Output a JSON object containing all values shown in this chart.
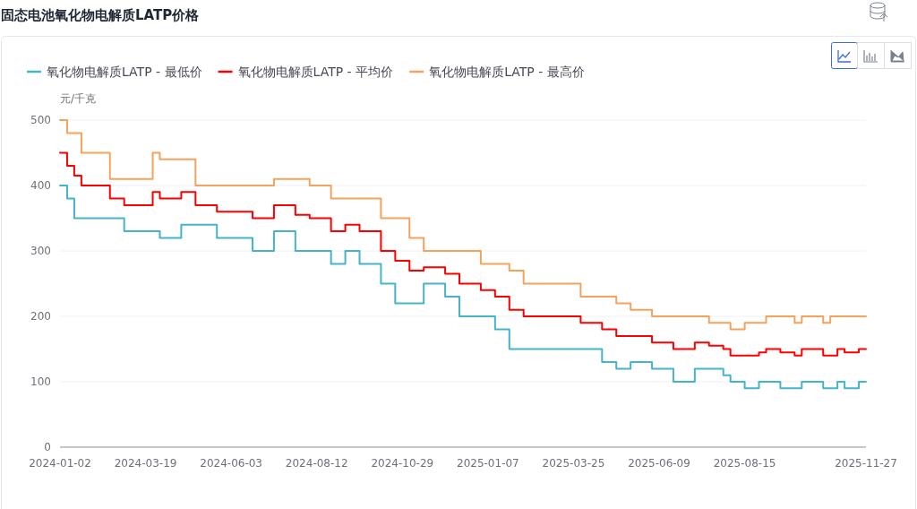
{
  "chart_data": {
    "type": "step",
    "title": "固态电池氧化物电解质LATP价格",
    "ylabel": "元/千克",
    "categories": [
      "2024-01-02",
      null,
      null,
      null,
      null,
      null,
      null,
      null,
      null,
      null,
      null,
      null,
      "2024-03-19",
      null,
      null,
      null,
      null,
      null,
      null,
      null,
      null,
      null,
      null,
      null,
      "2024-06-03",
      null,
      null,
      null,
      null,
      null,
      null,
      null,
      null,
      null,
      null,
      null,
      "2024-08-12",
      null,
      null,
      null,
      null,
      null,
      null,
      null,
      null,
      null,
      null,
      null,
      "2024-10-29",
      null,
      null,
      null,
      null,
      null,
      null,
      null,
      null,
      null,
      null,
      null,
      "2025-01-07",
      null,
      null,
      null,
      null,
      null,
      null,
      null,
      null,
      null,
      null,
      null,
      "2025-03-25",
      null,
      null,
      null,
      null,
      null,
      null,
      null,
      null,
      null,
      null,
      null,
      "2025-06-09",
      null,
      null,
      null,
      null,
      null,
      null,
      null,
      null,
      null,
      null,
      null,
      "2025-08-15",
      null,
      null,
      null,
      null,
      null,
      null,
      null,
      null,
      null,
      null,
      null,
      null,
      null,
      null,
      null,
      null,
      "2025-11-27"
    ],
    "series": [
      {
        "name": "氧化物电解质LATP - 最低价",
        "color": "#45b4c9",
        "values": [
          400,
          380,
          350,
          350,
          350,
          350,
          350,
          350,
          350,
          330,
          330,
          330,
          330,
          330,
          320,
          320,
          320,
          340,
          340,
          340,
          340,
          340,
          320,
          320,
          320,
          320,
          320,
          300,
          300,
          300,
          330,
          330,
          330,
          300,
          300,
          300,
          300,
          300,
          280,
          280,
          300,
          300,
          280,
          280,
          280,
          250,
          250,
          220,
          220,
          220,
          220,
          250,
          250,
          250,
          230,
          230,
          200,
          200,
          200,
          200,
          200,
          180,
          180,
          150,
          150,
          150,
          150,
          150,
          150,
          150,
          150,
          150,
          150,
          150,
          150,
          150,
          130,
          130,
          120,
          120,
          130,
          130,
          130,
          120,
          120,
          120,
          100,
          100,
          100,
          120,
          120,
          120,
          120,
          110,
          100,
          100,
          90,
          90,
          100,
          100,
          100,
          90,
          90,
          90,
          100,
          100,
          100,
          90,
          90,
          100,
          90,
          90,
          100,
          100
        ]
      },
      {
        "name": "氧化物电解质LATP - 平均价",
        "color": "#ff0000",
        "values": [
          450,
          430,
          415,
          400,
          400,
          400,
          400,
          380,
          380,
          370,
          370,
          370,
          370,
          390,
          380,
          380,
          380,
          390,
          390,
          370,
          370,
          370,
          360,
          360,
          360,
          360,
          360,
          350,
          350,
          350,
          370,
          370,
          370,
          355,
          355,
          350,
          350,
          350,
          330,
          330,
          340,
          340,
          330,
          330,
          330,
          300,
          300,
          285,
          285,
          270,
          270,
          275,
          275,
          275,
          265,
          265,
          250,
          250,
          250,
          240,
          240,
          230,
          230,
          210,
          210,
          200,
          200,
          200,
          200,
          200,
          200,
          200,
          200,
          190,
          190,
          190,
          180,
          180,
          170,
          170,
          170,
          170,
          170,
          160,
          160,
          160,
          150,
          150,
          150,
          160,
          160,
          155,
          155,
          150,
          140,
          140,
          140,
          140,
          145,
          150,
          150,
          145,
          145,
          140,
          150,
          150,
          150,
          140,
          140,
          150,
          145,
          145,
          150,
          150
        ]
      },
      {
        "name": "氧化物电解质LATP - 最高价",
        "color": "#f5a25d",
        "values": [
          500,
          480,
          480,
          450,
          450,
          450,
          450,
          410,
          410,
          410,
          410,
          410,
          410,
          450,
          440,
          440,
          440,
          440,
          440,
          400,
          400,
          400,
          400,
          400,
          400,
          400,
          400,
          400,
          400,
          400,
          410,
          410,
          410,
          410,
          410,
          400,
          400,
          400,
          380,
          380,
          380,
          380,
          380,
          380,
          380,
          350,
          350,
          350,
          350,
          320,
          320,
          300,
          300,
          300,
          300,
          300,
          300,
          300,
          300,
          280,
          280,
          280,
          280,
          270,
          270,
          250,
          250,
          250,
          250,
          250,
          250,
          250,
          250,
          230,
          230,
          230,
          230,
          230,
          220,
          220,
          210,
          210,
          210,
          200,
          200,
          200,
          200,
          200,
          200,
          200,
          200,
          190,
          190,
          190,
          180,
          180,
          190,
          190,
          190,
          200,
          200,
          200,
          200,
          190,
          200,
          200,
          200,
          190,
          200,
          200,
          200,
          200,
          200,
          200
        ]
      }
    ],
    "ylim": [
      0,
      500
    ],
    "yticks": [
      0,
      100,
      200,
      300,
      400,
      500
    ],
    "grid": "y",
    "legend": "top left",
    "line_style": "solid"
  }
}
